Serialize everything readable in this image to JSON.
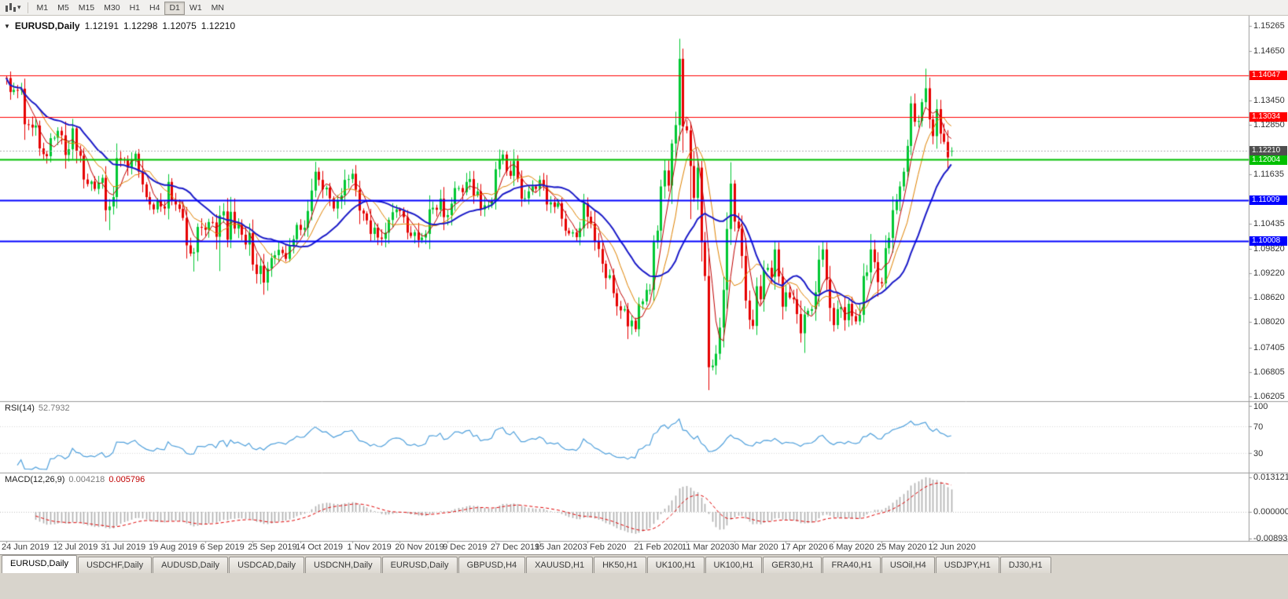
{
  "icons": {
    "one_click": "▼",
    "chart_type_caret": "▾",
    "chart_type": "bar-chart"
  },
  "toolbar": {
    "timeframes": [
      {
        "label": "M1",
        "active": false
      },
      {
        "label": "M5",
        "active": false
      },
      {
        "label": "M15",
        "active": false
      },
      {
        "label": "M30",
        "active": false
      },
      {
        "label": "H1",
        "active": false
      },
      {
        "label": "H4",
        "active": false
      },
      {
        "label": "D1",
        "active": true
      },
      {
        "label": "W1",
        "active": false
      },
      {
        "label": "MN",
        "active": false
      }
    ]
  },
  "chart_title": {
    "symbol": "EURUSD,Daily",
    "open": "1.12191",
    "high": "1.12298",
    "low": "1.12075",
    "close": "1.12210"
  },
  "tabs": [
    {
      "label": "EURUSD,Daily",
      "active": true
    },
    {
      "label": "USDCHF,Daily",
      "active": false
    },
    {
      "label": "AUDUSD,Daily",
      "active": false
    },
    {
      "label": "USDCAD,Daily",
      "active": false
    },
    {
      "label": "USDCNH,Daily",
      "active": false
    },
    {
      "label": "EURUSD,Daily",
      "active": false
    },
    {
      "label": "GBPUSD,H4",
      "active": false
    },
    {
      "label": "XAUUSD,H1",
      "active": false
    },
    {
      "label": "HK50,H1",
      "active": false
    },
    {
      "label": "UK100,H1",
      "active": false
    },
    {
      "label": "UK100,H1",
      "active": false
    },
    {
      "label": "GER30,H1",
      "active": false
    },
    {
      "label": "FRA40,H1",
      "active": false
    },
    {
      "label": "USOil,H4",
      "active": false
    },
    {
      "label": "USDJPY,H1",
      "active": false
    },
    {
      "label": "DJ30,H1",
      "active": false
    }
  ],
  "chart_data": {
    "type": "candlestick",
    "symbol": "EURUSD",
    "timeframe": "Daily",
    "ohlc_current": {
      "open": 1.12191,
      "high": 1.12298,
      "low": 1.12075,
      "close": 1.1221
    },
    "x_dates": [
      "24 Jun 2019",
      "12 Jul 2019",
      "31 Jul 2019",
      "19 Aug 2019",
      "6 Sep 2019",
      "25 Sep 2019",
      "14 Oct 2019",
      "1 Nov 2019",
      "20 Nov 2019",
      "9 Dec 2019",
      "27 Dec 2019",
      "15 Jan 2020",
      "3 Feb 2020",
      "21 Feb 2020",
      "11 Mar 2020",
      "30 Mar 2020",
      "17 Apr 2020",
      "6 May 2020",
      "25 May 2020",
      "12 Jun 2020"
    ],
    "date_indices": [
      0,
      14,
      27,
      40,
      54,
      67,
      80,
      94,
      107,
      120,
      133,
      145,
      158,
      172,
      185,
      198,
      212,
      225,
      238,
      252
    ],
    "first_open": 1.14,
    "closes": [
      1.1399,
      1.1365,
      1.137,
      1.1369,
      1.1373,
      1.1286,
      1.1285,
      1.1278,
      1.1283,
      1.1227,
      1.1213,
      1.1208,
      1.1252,
      1.1253,
      1.127,
      1.1259,
      1.1211,
      1.1225,
      1.1276,
      1.1221,
      1.1209,
      1.1151,
      1.114,
      1.1146,
      1.1128,
      1.1143,
      1.1155,
      1.1076,
      1.1085,
      1.1108,
      1.1203,
      1.12,
      1.1199,
      1.118,
      1.12,
      1.1214,
      1.117,
      1.1139,
      1.1108,
      1.109,
      1.1078,
      1.11,
      1.1085,
      1.108,
      1.1145,
      1.1101,
      1.109,
      1.1079,
      1.1057,
      1.099,
      1.097,
      1.0973,
      1.1035,
      1.1034,
      1.1028,
      1.1047,
      1.1046,
      1.1011,
      1.1063,
      1.1073,
      1.1004,
      1.1072,
      1.1031,
      1.1043,
      1.1016,
      1.0992,
      1.102,
      1.0943,
      1.092,
      1.094,
      1.0899,
      1.0933,
      1.0959,
      1.0966,
      1.0979,
      1.0971,
      1.0957,
      1.0988,
      1.1005,
      1.104,
      1.1028,
      1.1033,
      1.1074,
      1.1124,
      1.117,
      1.115,
      1.1127,
      1.1131,
      1.1105,
      1.108,
      1.1099,
      1.1112,
      1.115,
      1.1152,
      1.1165,
      1.1126,
      1.1075,
      1.1068,
      1.1051,
      1.1018,
      1.1033,
      1.1009,
      1.1006,
      1.1021,
      1.1052,
      1.1071,
      1.1078,
      1.1074,
      1.1059,
      1.1021,
      1.1013,
      1.1022,
      1.1003,
      1.1009,
      1.1018,
      1.1078,
      1.1082,
      1.1077,
      1.1104,
      1.1059,
      1.1064,
      1.1092,
      1.113,
      1.113,
      1.112,
      1.1145,
      1.1152,
      1.1112,
      1.1122,
      1.1078,
      1.1088,
      1.1088,
      1.11,
      1.1176,
      1.1199,
      1.1212,
      1.1172,
      1.116,
      1.1196,
      1.1153,
      1.1104,
      1.1105,
      1.1122,
      1.1134,
      1.1128,
      1.115,
      1.1136,
      1.109,
      1.1095,
      1.1084,
      1.1093,
      1.1055,
      1.1026,
      1.1019,
      1.1022,
      1.101,
      1.1032,
      1.1093,
      1.106,
      1.1043,
      1.0999,
      1.0981,
      1.0945,
      1.091,
      1.0917,
      1.0873,
      1.0841,
      1.0831,
      1.0834,
      1.0792,
      1.0806,
      1.0785,
      1.0846,
      1.0853,
      1.0881,
      1.0881,
      1.0998,
      1.1026,
      1.1134,
      1.1173,
      1.1136,
      1.1239,
      1.1284,
      1.1446,
      1.1281,
      1.1271,
      1.1184,
      1.1106,
      1.118,
      1.0998,
      1.0915,
      1.0692,
      1.0696,
      1.0725,
      1.0789,
      1.0881,
      1.103,
      1.1141,
      1.1048,
      1.1031,
      1.0964,
      1.0855,
      1.0808,
      1.0793,
      1.089,
      1.0858,
      1.093,
      1.0935,
      1.0913,
      1.098,
      1.0914,
      1.084,
      1.0875,
      1.0862,
      1.0858,
      1.0822,
      1.0775,
      1.0821,
      1.083,
      1.0834,
      1.0875,
      1.0955,
      1.098,
      1.0906,
      1.0837,
      1.0795,
      1.0834,
      1.0839,
      1.0807,
      1.0847,
      1.0817,
      1.0804,
      1.082,
      1.0915,
      1.0924,
      1.098,
      1.0949,
      1.09,
      1.0897,
      1.0983,
      1.1008,
      1.1076,
      1.1101,
      1.1134,
      1.117,
      1.1233,
      1.1337,
      1.1292,
      1.1294,
      1.134,
      1.1374,
      1.1298,
      1.1257,
      1.1323,
      1.1263,
      1.1243,
      1.1205,
      1.1221
    ],
    "wick_overrides": {
      "0": {
        "h": 1.1405
      },
      "28": {
        "l": 1.1027
      },
      "51": {
        "l": 1.0926
      },
      "58": {
        "h": 1.1087,
        "l": 1.0927
      },
      "71": {
        "l": 1.0879
      },
      "171": {
        "l": 1.0778
      },
      "183": {
        "h": 1.1495
      },
      "186": {
        "h": 1.129,
        "l": 1.1054
      },
      "191": {
        "l": 1.0636
      },
      "217": {
        "l": 1.0727
      },
      "250": {
        "h": 1.1422
      },
      "251": {
        "h": 1.14
      },
      "257": {
        "o": 1.12191,
        "h": 1.12298,
        "l": 1.12075,
        "c": 1.1221
      }
    },
    "candle_colors": {
      "bull": "#00c832",
      "bear": "#e60000"
    },
    "moving_averages": [
      {
        "period": 5,
        "color": "#c00000",
        "width": 1
      },
      {
        "period": 10,
        "color": "#e08200",
        "width": 1
      },
      {
        "period": 21,
        "color": "#1a1ac8",
        "width": 2
      }
    ],
    "levels": [
      {
        "price": 1.14047,
        "label": "1.14047",
        "color": "#ff0000",
        "width": 1
      },
      {
        "price": 1.13034,
        "label": "1.13034",
        "color": "#ff0000",
        "width": 1
      },
      {
        "price": 1.12004,
        "label": "1.12004",
        "color": "#00c000",
        "width": 2
      },
      {
        "price": 1.11009,
        "label": "1.11009",
        "color": "#0000ff",
        "width": 2
      },
      {
        "price": 1.10008,
        "label": "1.10008",
        "color": "#0000ff",
        "width": 2
      }
    ],
    "current_price_line": {
      "price": 1.1221,
      "label": "1.12210",
      "line_color": "#b0b0b0",
      "tag_color": "#4f4f4f"
    },
    "price_axis_ticks": [
      "1.15265",
      "1.14650",
      "1.13450",
      "1.12850",
      "1.11635",
      "1.10435",
      "1.09820",
      "1.09220",
      "1.08620",
      "1.08020",
      "1.07405",
      "1.06805",
      "1.06205"
    ],
    "indicators": {
      "rsi": {
        "name": "RSI(14)",
        "period": 14,
        "value": "52.7932",
        "levels": [
          100,
          70,
          30
        ],
        "color": "#4fa0dc"
      },
      "macd": {
        "name": "MACD(12,26,9)",
        "fast": 12,
        "slow": 26,
        "signal": 9,
        "main_value": "0.004218",
        "signal_value": "0.005796",
        "axis": [
          "0.013121",
          "0.000000",
          "-0.008933"
        ],
        "hist_color": "#b0b0b0",
        "signal_color": "#e00000"
      }
    }
  }
}
